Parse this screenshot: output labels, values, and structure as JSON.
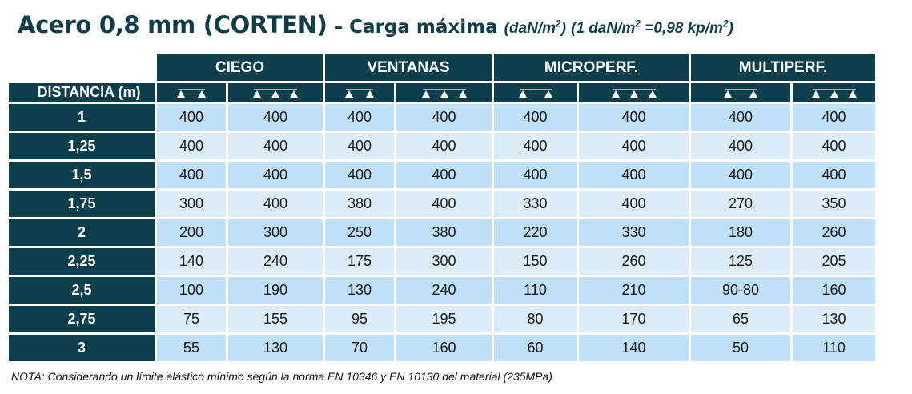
{
  "title": {
    "main": "Acero 0,8 mm (CORTEN)",
    "subtitle": "– Carga máxima",
    "unit_open": "(daN/m",
    "unit_sup": "2",
    "unit_close": ")",
    "conversion_open": "(1 daN/m",
    "conversion_sup1": "2",
    "conversion_mid": " =0,98 kp/m",
    "conversion_sup2": "2",
    "conversion_close": ")"
  },
  "table": {
    "distance_header": "DISTANCIA (m)",
    "groups": [
      "CIEGO",
      "VENTANAS",
      "MICROPERF.",
      "MULTIPERF."
    ],
    "support_icons": [
      "two-support-icon",
      "three-support-icon"
    ],
    "rows": [
      {
        "distance": "1",
        "values": [
          "400",
          "400",
          "400",
          "400",
          "400",
          "400",
          "400",
          "400"
        ]
      },
      {
        "distance": "1,25",
        "values": [
          "400",
          "400",
          "400",
          "400",
          "400",
          "400",
          "400",
          "400"
        ]
      },
      {
        "distance": "1,5",
        "values": [
          "400",
          "400",
          "400",
          "400",
          "400",
          "400",
          "400",
          "400"
        ]
      },
      {
        "distance": "1,75",
        "values": [
          "300",
          "400",
          "380",
          "400",
          "330",
          "400",
          "270",
          "350"
        ]
      },
      {
        "distance": "2",
        "values": [
          "200",
          "300",
          "250",
          "380",
          "220",
          "330",
          "180",
          "260"
        ]
      },
      {
        "distance": "2,25",
        "values": [
          "140",
          "240",
          "175",
          "300",
          "150",
          "260",
          "125",
          "205"
        ]
      },
      {
        "distance": "2,5",
        "values": [
          "100",
          "190",
          "130",
          "240",
          "110",
          "210",
          "90-80",
          "160"
        ]
      },
      {
        "distance": "2,75",
        "values": [
          "75",
          "155",
          "95",
          "195",
          "80",
          "170",
          "65",
          "130"
        ]
      },
      {
        "distance": "3",
        "values": [
          "55",
          "130",
          "70",
          "160",
          "60",
          "140",
          "50",
          "110"
        ]
      }
    ]
  },
  "footer": {
    "note": "NOTA: Considerando un límite elástico mínimo según la norma EN 10346 y EN 10130 del material (235MPa)"
  },
  "colors": {
    "header_bg": "#0c3f4b",
    "title_color": "#0f3d4a",
    "row_light_blue": "#bfe0f7",
    "row_pale_blue": "#dcecf8"
  }
}
